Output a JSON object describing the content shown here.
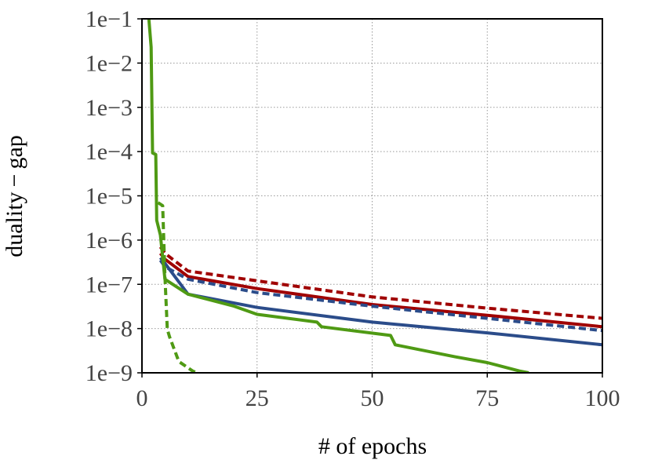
{
  "chart_data": {
    "type": "line",
    "xlabel": "# of epochs",
    "ylabel": "duality − gap",
    "xlim": [
      0,
      100
    ],
    "xticks": [
      0,
      25,
      50,
      75,
      100
    ],
    "ylim": [
      1e-09,
      0.1
    ],
    "log_y": true,
    "grid": true,
    "yticks": [
      {
        "value": 1e-09,
        "label": "1e−9"
      },
      {
        "value": 1e-08,
        "label": "1e−8"
      },
      {
        "value": 1e-07,
        "label": "1e−7"
      },
      {
        "value": 1e-06,
        "label": "1e−6"
      },
      {
        "value": 1e-05,
        "label": "1e−5"
      },
      {
        "value": 0.0001,
        "label": "1e−4"
      },
      {
        "value": 0.001,
        "label": "1e−3"
      },
      {
        "value": 0.01,
        "label": "1e−2"
      },
      {
        "value": 0.1,
        "label": "1e−1"
      }
    ],
    "series": [
      {
        "color": "#a00000",
        "dash": true,
        "x": [
          4,
          5,
          10,
          25,
          50,
          75,
          100
        ],
        "values": [
          7e-07,
          5e-07,
          2e-07,
          1.2e-07,
          5.2e-08,
          2.9e-08,
          1.7e-08
        ]
      },
      {
        "color": "#a00000",
        "dash": false,
        "x": [
          4,
          5,
          10,
          25,
          50,
          75,
          100
        ],
        "values": [
          5e-07,
          3.7e-07,
          1.5e-07,
          8e-08,
          3.5e-08,
          2e-08,
          1.1e-08
        ]
      },
      {
        "color": "#2b4c8a",
        "dash": true,
        "x": [
          4,
          5,
          10,
          25,
          50,
          75,
          100
        ],
        "values": [
          3.5e-07,
          2.5e-07,
          1.3e-07,
          6.5e-08,
          3.2e-08,
          1.7e-08,
          9e-09
        ]
      },
      {
        "color": "#2b4c8a",
        "dash": false,
        "x": [
          4,
          5,
          10,
          25,
          50,
          75,
          100
        ],
        "values": [
          4e-07,
          3e-07,
          6e-08,
          3e-08,
          1.4e-08,
          8e-09,
          4.3e-09
        ]
      },
      {
        "color": "#4f9a14",
        "dash": false,
        "x": [
          1.5,
          2,
          2.3,
          3,
          3.2,
          4,
          5,
          10,
          20,
          25,
          38,
          39,
          54,
          55,
          68,
          75,
          82,
          84
        ],
        "values": [
          0.1,
          0.023,
          9.3e-05,
          8.6e-05,
          2.8e-06,
          1.3e-06,
          1.3e-07,
          6e-08,
          3.2e-08,
          2.1e-08,
          1.4e-08,
          1.1e-08,
          7e-09,
          4.3e-09,
          2.3e-09,
          1.7e-09,
          1.1e-09,
          1e-09
        ]
      },
      {
        "color": "#4f9a14",
        "dash": true,
        "x": [
          3.5,
          4.5,
          5,
          5.5,
          6,
          8,
          11,
          12
        ],
        "values": [
          7e-06,
          6e-06,
          1.5e-07,
          9.6e-09,
          6.5e-09,
          1.8e-09,
          1.1e-09,
          1e-09
        ]
      }
    ]
  }
}
